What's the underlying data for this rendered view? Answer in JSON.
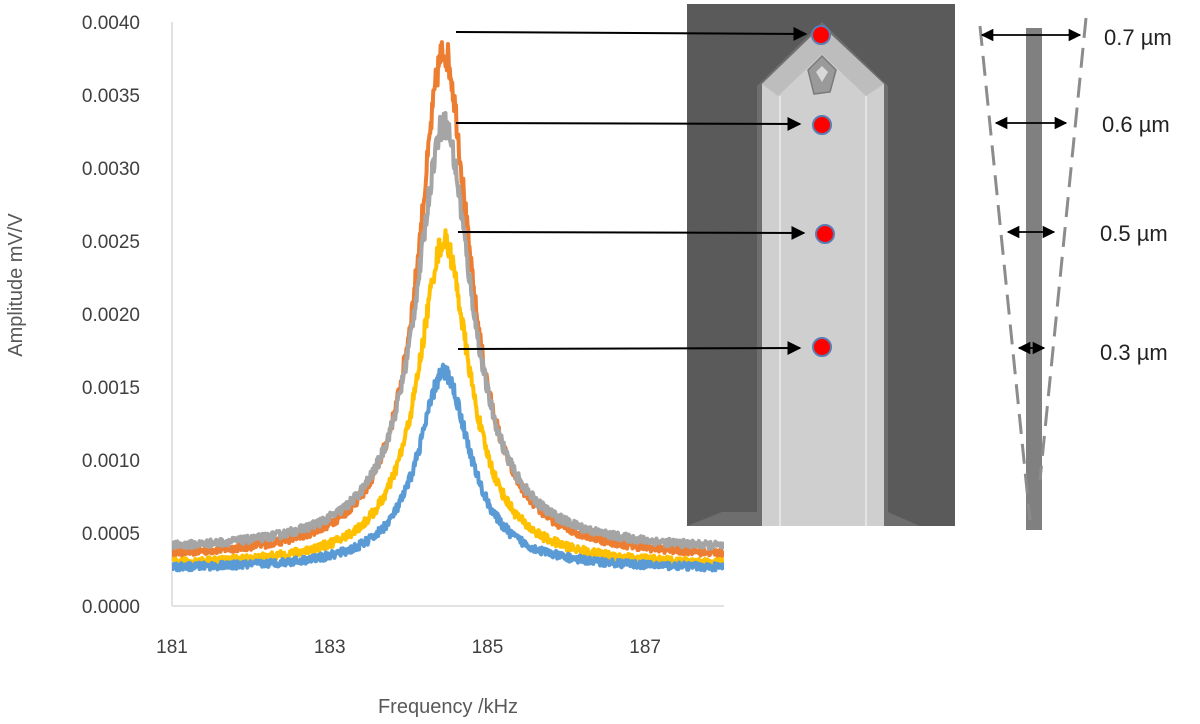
{
  "chart_data": {
    "type": "line",
    "xlabel": "Frequency /kHz",
    "ylabel": "Amplitude mV/V",
    "xlim": [
      181,
      188
    ],
    "ylim": [
      0,
      0.004
    ],
    "x_ticks": [
      "181",
      "183",
      "185",
      "187"
    ],
    "y_ticks": [
      "0.0000",
      "0.0005",
      "0.0010",
      "0.0015",
      "0.0020",
      "0.0025",
      "0.0030",
      "0.0035",
      "0.0040"
    ],
    "grid": false,
    "legend": "none",
    "resonance_model": "lorentzian",
    "series": [
      {
        "color": "#ED7D31",
        "peak_x": 184.45,
        "peak_y": 0.0038,
        "baseline_y": 0.00032,
        "half_width_khz": 0.4
      },
      {
        "color": "#A5A5A5",
        "peak_x": 184.45,
        "peak_y": 0.0033,
        "baseline_y": 0.00037,
        "half_width_khz": 0.43
      },
      {
        "color": "#FFC000",
        "peak_x": 184.45,
        "peak_y": 0.0025,
        "baseline_y": 0.00027,
        "half_width_khz": 0.4
      },
      {
        "color": "#5B9BD5",
        "peak_x": 184.45,
        "peak_y": 0.0016,
        "baseline_y": 0.00025,
        "half_width_khz": 0.4
      }
    ],
    "annotations": [
      {
        "label": "0.7 µm",
        "amplitude": 0.0039
      },
      {
        "label": "0.6 µm",
        "amplitude": 0.0033
      },
      {
        "label": "0.5 µm",
        "amplitude": 0.0026
      },
      {
        "label": "0.3 µm",
        "amplitude": 0.0018
      }
    ]
  },
  "inset": {
    "type": "SEM micrograph of cantilever tip",
    "marker_color": "#FF0000",
    "marker_count": 4
  },
  "colors": {
    "axis": "#D9D9D9",
    "text": "#404040",
    "sem_background": "#5A5A5A",
    "cantilever": "#CFCFCF",
    "taper_line": "#8C8C8C"
  }
}
